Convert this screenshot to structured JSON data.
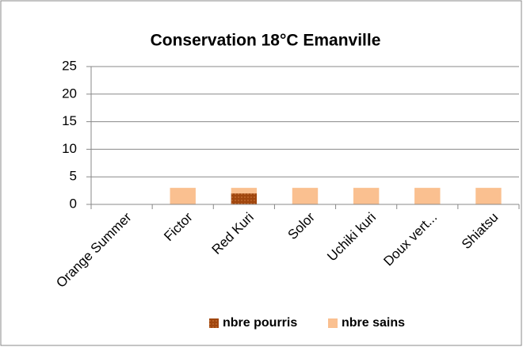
{
  "chart_data": {
    "type": "bar",
    "stacked": true,
    "title": "Conservation 18°C Emanville",
    "categories": [
      "Orange Summer",
      "Fictor",
      "Red Kuri",
      "Solor",
      "Uchiki kuri",
      "Doux vert...",
      "Shiatsu"
    ],
    "series": [
      {
        "name": "nbre pourris",
        "color": "#a0460e",
        "values": [
          0,
          0,
          2,
          0,
          0,
          0,
          0
        ]
      },
      {
        "name": "nbre sains",
        "color": "#fac090",
        "values": [
          0,
          3,
          1,
          3,
          3,
          3,
          3
        ]
      }
    ],
    "ylim": [
      0,
      25
    ],
    "yticks": [
      0,
      5,
      10,
      15,
      20,
      25
    ],
    "grid": true,
    "legend": "bottom"
  }
}
